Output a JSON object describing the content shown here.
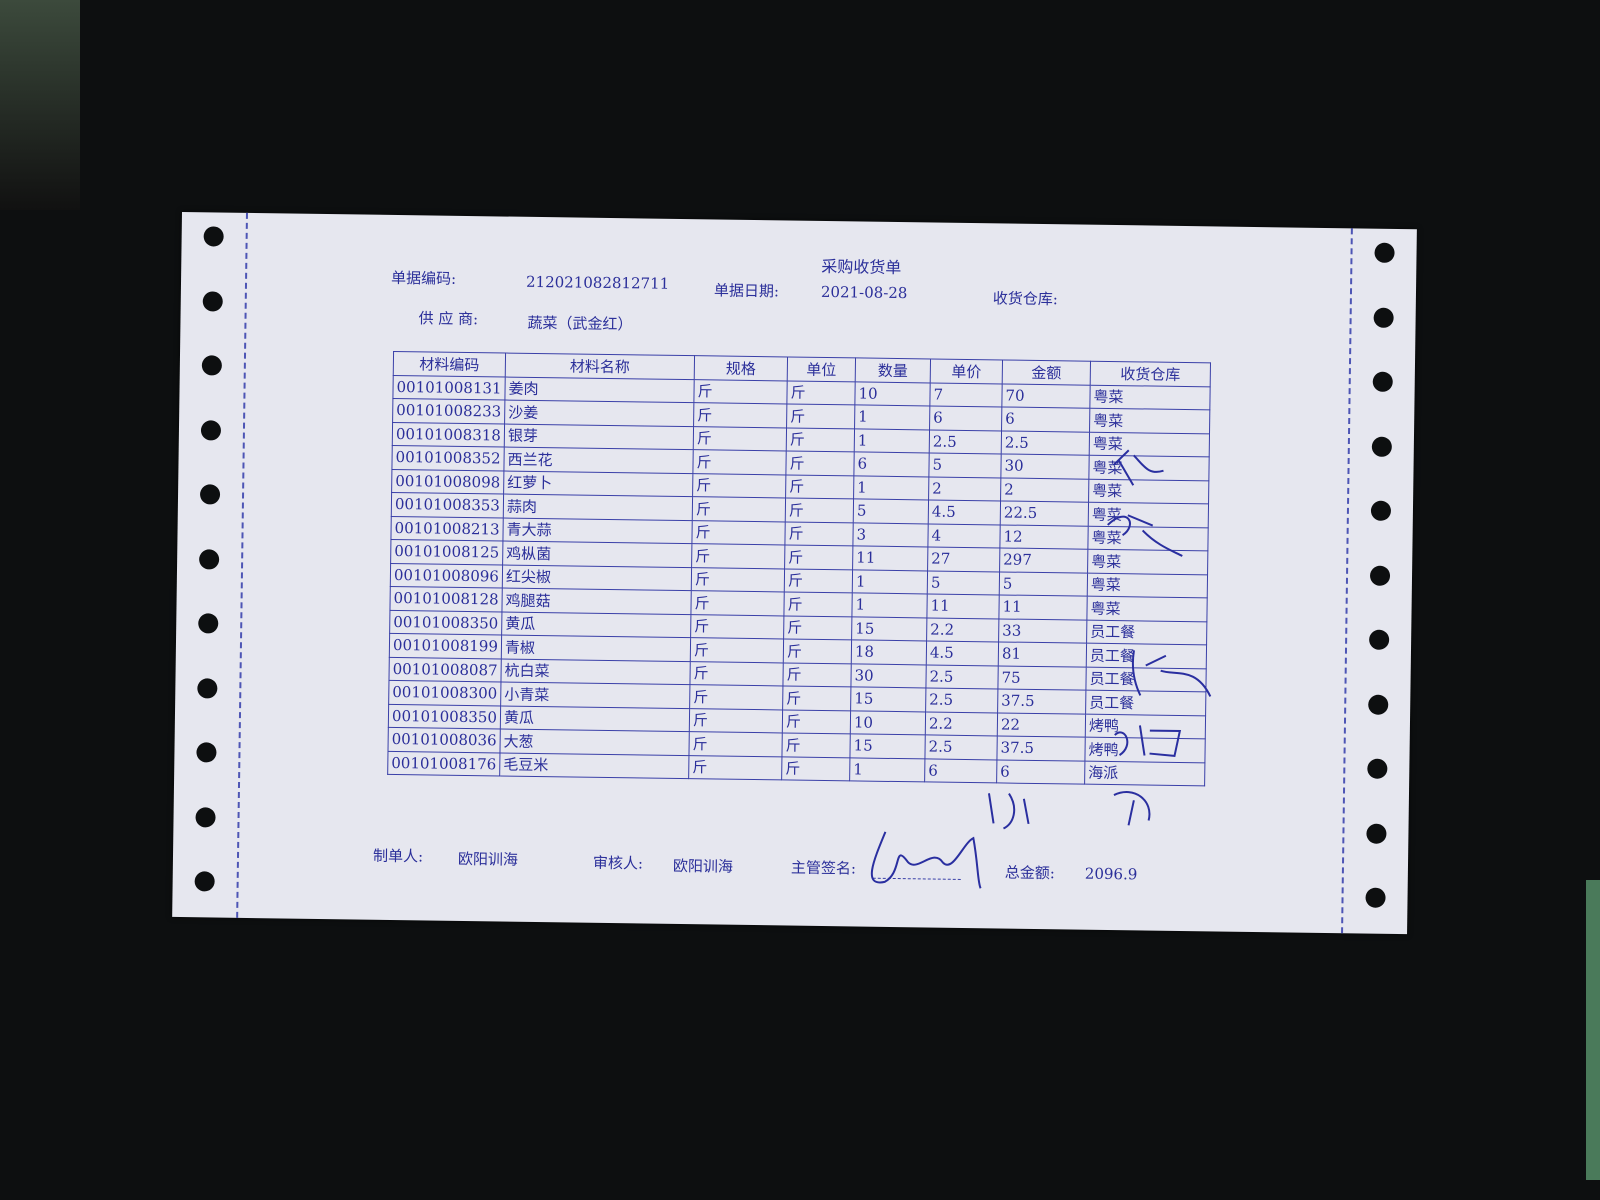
{
  "document": {
    "title": "采购收货单",
    "doc_no_label": "单据编码:",
    "doc_no": "212021082812711",
    "date_label": "单据日期:",
    "date": "2021-08-28",
    "warehouse_label": "收货仓库:",
    "supplier_label": "供 应 商:",
    "supplier": "蔬菜（武金红）"
  },
  "table": {
    "headers": [
      "材料编码",
      "材料名称",
      "规格",
      "单位",
      "数量",
      "单价",
      "金额",
      "收货仓库"
    ],
    "rows": [
      [
        "00101008131",
        "姜肉",
        "斤",
        "斤",
        "10",
        "7",
        "70",
        "粤菜"
      ],
      [
        "00101008233",
        "沙姜",
        "斤",
        "斤",
        "1",
        "6",
        "6",
        "粤菜"
      ],
      [
        "00101008318",
        "银芽",
        "斤",
        "斤",
        "1",
        "2.5",
        "2.5",
        "粤菜"
      ],
      [
        "00101008352",
        "西兰花",
        "斤",
        "斤",
        "6",
        "5",
        "30",
        "粤菜"
      ],
      [
        "00101008098",
        "红萝卜",
        "斤",
        "斤",
        "1",
        "2",
        "2",
        "粤菜"
      ],
      [
        "00101008353",
        "蒜肉",
        "斤",
        "斤",
        "5",
        "4.5",
        "22.5",
        "粤菜"
      ],
      [
        "00101008213",
        "青大蒜",
        "斤",
        "斤",
        "3",
        "4",
        "12",
        "粤菜"
      ],
      [
        "00101008125",
        "鸡枞菌",
        "斤",
        "斤",
        "11",
        "27",
        "297",
        "粤菜"
      ],
      [
        "00101008096",
        "红尖椒",
        "斤",
        "斤",
        "1",
        "5",
        "5",
        "粤菜"
      ],
      [
        "00101008128",
        "鸡腿菇",
        "斤",
        "斤",
        "1",
        "11",
        "11",
        "粤菜"
      ],
      [
        "00101008350",
        "黄瓜",
        "斤",
        "斤",
        "15",
        "2.2",
        "33",
        "员工餐"
      ],
      [
        "00101008199",
        "青椒",
        "斤",
        "斤",
        "18",
        "4.5",
        "81",
        "员工餐"
      ],
      [
        "00101008087",
        "杭白菜",
        "斤",
        "斤",
        "30",
        "2.5",
        "75",
        "员工餐"
      ],
      [
        "00101008300",
        "小青菜",
        "斤",
        "斤",
        "15",
        "2.5",
        "37.5",
        "员工餐"
      ],
      [
        "00101008350",
        "黄瓜",
        "斤",
        "斤",
        "10",
        "2.2",
        "22",
        "烤鸭"
      ],
      [
        "00101008036",
        "大葱",
        "斤",
        "斤",
        "15",
        "2.5",
        "37.5",
        "烤鸭"
      ],
      [
        "00101008176",
        "毛豆米",
        "斤",
        "斤",
        "1",
        "6",
        "6",
        "海派"
      ]
    ]
  },
  "footer": {
    "maker_label": "制单人:",
    "maker": "欧阳训海",
    "reviewer_label": "审核人:",
    "reviewer": "欧阳训海",
    "supervisor_label": "主管签名:",
    "total_label": "总金额:",
    "total": "2096.9"
  },
  "colors": {
    "ink": "#2b2f9a",
    "paper": "#e6e7ef",
    "background": "#0d0f10"
  }
}
